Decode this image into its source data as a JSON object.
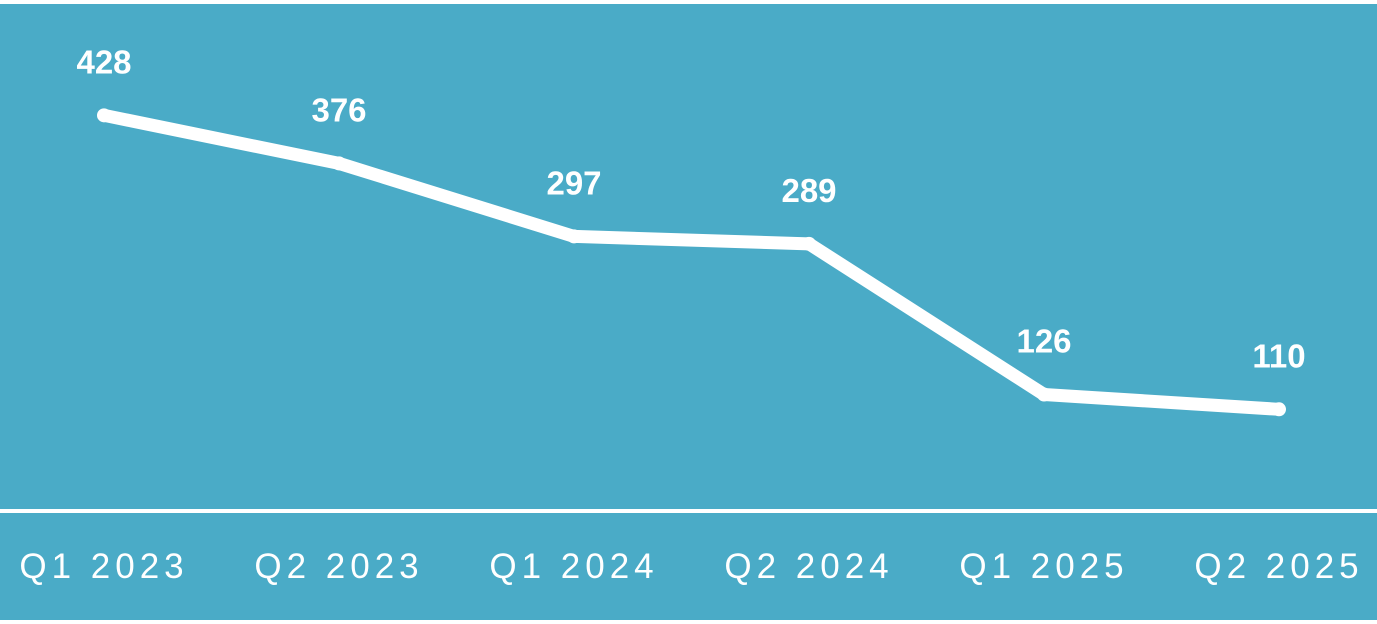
{
  "colors": {
    "background": "#4aabc7",
    "line": "#ffffff",
    "text": "#ffffff"
  },
  "chart_data": {
    "type": "line",
    "categories": [
      "Q1 2023",
      "Q2 2023",
      "Q1 2024",
      "Q2 2024",
      "Q1 2025",
      "Q2 2025"
    ],
    "values": [
      428,
      376,
      297,
      289,
      126,
      110
    ],
    "data_labels": [
      "428",
      "376",
      "297",
      "289",
      "126",
      "110"
    ],
    "title": "",
    "xlabel": "",
    "ylabel": "",
    "ylim": [
      0,
      500
    ],
    "grid": false,
    "legend": "none",
    "drop_lines": true
  }
}
